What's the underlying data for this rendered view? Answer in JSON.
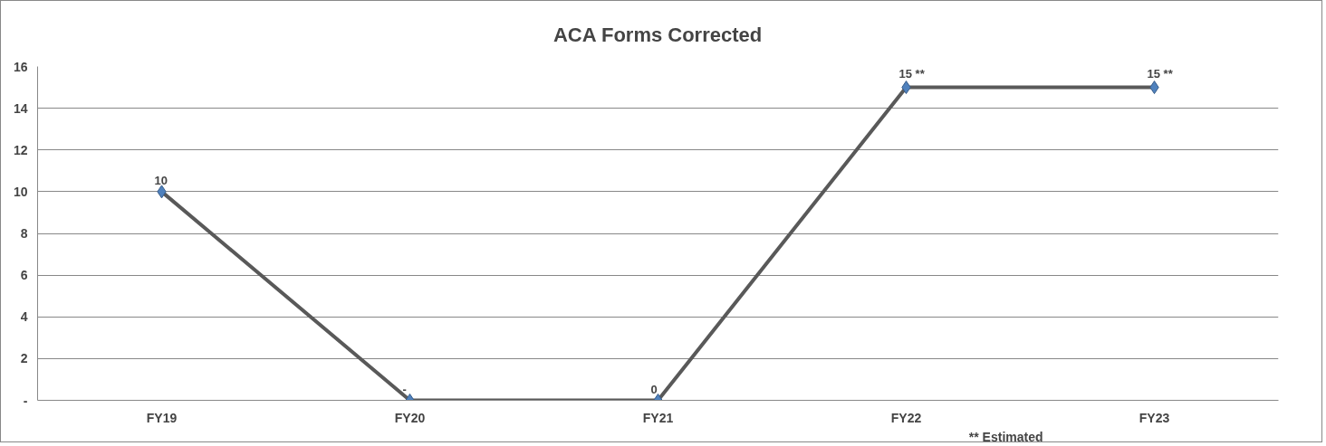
{
  "chart_data": {
    "type": "line",
    "title": "ACA Forms Corrected",
    "categories": [
      "FY19",
      "FY20",
      "FY21",
      "FY22",
      "FY23"
    ],
    "series": [
      {
        "color": "#595959",
        "colors": [
          "#4f81bd",
          "#4f81bd",
          "#4f81bd",
          "#4f81bd",
          "#4f81bd"
        ],
        "values": [
          10,
          0,
          0,
          15,
          15
        ],
        "value_labels": [
          "10",
          "-",
          "0",
          "15 **",
          "15 **"
        ]
      }
    ],
    "ylim": [
      0,
      16
    ],
    "yticks": [
      {
        "value": 0,
        "label": "-"
      },
      2,
      4,
      6,
      8,
      10,
      12,
      14,
      16
    ],
    "grid": "y",
    "marker": "diamond",
    "line_style": "solid",
    "annotations": [
      "** Estimated"
    ]
  }
}
